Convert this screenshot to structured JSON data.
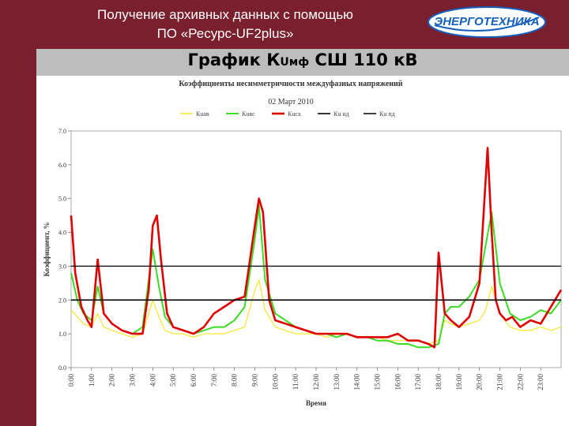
{
  "header": {
    "title_line1": "Получение архивных данных с помощью",
    "title_line2": "ПО «Ресурс-UF2plus»",
    "logo_text": "ЭНЕРГОТЕХНИКА"
  },
  "slide": {
    "title_main": "График К",
    "title_sub": "Uмф",
    "title_rest": "  СШ 110 кВ"
  },
  "colors": {
    "header_bg": "#7a1f2e",
    "band_bg": "#bdbdbd",
    "logo_blue": "#1560bd",
    "k_yellow": "#f5e62a",
    "k_green": "#3ddc24",
    "k_red": "#e00000",
    "limit_line": "#000000"
  },
  "chart_data": {
    "type": "line",
    "title": "Коэффициенты несимметричности междуфазных напряжений",
    "subtitle": "02 Март 2010",
    "xlabel": "Время",
    "ylabel": "Коэффициент, %",
    "ylim": [
      0,
      7
    ],
    "yticks": [
      "0.0",
      "1.0",
      "2.0",
      "3.0",
      "4.0",
      "5.0",
      "6.0",
      "7.0"
    ],
    "xlim": [
      0,
      24
    ],
    "xticks": [
      "0:00",
      "1:00",
      "2:00",
      "3:00",
      "4:00",
      "5:00",
      "6:00",
      "7:00",
      "8:00",
      "9:00",
      "10:00",
      "11:00",
      "12:00",
      "13:00",
      "14:00",
      "15:00",
      "16:00",
      "17:00",
      "18:00",
      "19:00",
      "20:00",
      "21:00",
      "22:00",
      "23:00"
    ],
    "legend": [
      "Кuав",
      "Кuвс",
      "Кuса",
      "Кu нд",
      "Кu пд"
    ],
    "legend_position": "top",
    "grid": false,
    "thresholds": [
      {
        "name": "Кu нд",
        "value": 2.0
      },
      {
        "name": "Кu пд",
        "value": 3.0
      }
    ],
    "series": [
      {
        "name": "Кuав",
        "x": [
          0,
          0.3,
          0.6,
          1,
          1.3,
          1.6,
          2,
          2.5,
          3,
          3.5,
          3.8,
          4,
          4.3,
          4.6,
          5,
          5.5,
          6,
          6.5,
          7,
          7.5,
          8,
          8.5,
          9,
          9.2,
          9.5,
          10,
          10.5,
          11,
          11.5,
          12,
          12.5,
          13,
          13.5,
          14,
          14.5,
          15,
          15.5,
          16,
          16.5,
          17,
          17.5,
          18,
          18.3,
          18.6,
          19,
          19.5,
          20,
          20.3,
          20.6,
          21,
          21.5,
          22,
          22.5,
          23,
          23.5,
          24
        ],
        "y": [
          1.7,
          1.5,
          1.3,
          1.2,
          1.6,
          1.2,
          1.1,
          1.0,
          0.9,
          1.0,
          1.6,
          2.0,
          1.5,
          1.1,
          1.0,
          1.0,
          0.9,
          1.0,
          1.0,
          1.0,
          1.1,
          1.2,
          2.3,
          2.6,
          1.7,
          1.2,
          1.1,
          1.0,
          1.0,
          1.0,
          0.9,
          1.0,
          1.0,
          0.9,
          0.9,
          0.9,
          0.8,
          0.8,
          0.8,
          0.8,
          0.7,
          0.8,
          1.4,
          1.3,
          1.2,
          1.3,
          1.4,
          1.7,
          2.4,
          1.6,
          1.2,
          1.1,
          1.1,
          1.2,
          1.1,
          1.2
        ]
      },
      {
        "name": "Кuвс",
        "x": [
          0,
          0.3,
          0.6,
          1,
          1.3,
          1.6,
          2,
          2.5,
          3,
          3.5,
          3.8,
          4,
          4.3,
          4.6,
          5,
          5.5,
          6,
          6.5,
          7,
          7.5,
          8,
          8.5,
          9,
          9.2,
          9.5,
          10,
          10.5,
          11,
          11.5,
          12,
          12.5,
          13,
          13.5,
          14,
          14.5,
          15,
          15.5,
          16,
          16.5,
          17,
          17.5,
          18,
          18.3,
          18.6,
          19,
          19.5,
          20,
          20.3,
          20.6,
          21,
          21.5,
          22,
          22.5,
          23,
          23.5,
          24
        ],
        "y": [
          2.8,
          2.0,
          1.6,
          1.4,
          2.4,
          1.6,
          1.3,
          1.1,
          1.0,
          1.2,
          2.6,
          3.5,
          2.4,
          1.5,
          1.2,
          1.1,
          1.0,
          1.1,
          1.2,
          1.2,
          1.4,
          1.8,
          3.8,
          4.8,
          2.6,
          1.6,
          1.4,
          1.2,
          1.1,
          1.0,
          1.0,
          0.9,
          1.0,
          0.9,
          0.9,
          0.8,
          0.8,
          0.7,
          0.7,
          0.6,
          0.6,
          0.7,
          1.6,
          1.8,
          1.8,
          2.1,
          2.6,
          3.6,
          4.6,
          2.5,
          1.6,
          1.4,
          1.5,
          1.7,
          1.6,
          2.0
        ]
      },
      {
        "name": "Кuса",
        "x": [
          0,
          0.2,
          0.5,
          0.8,
          1,
          1.3,
          1.6,
          2,
          2.5,
          3,
          3.5,
          3.8,
          4,
          4.2,
          4.4,
          4.7,
          5,
          5.5,
          6,
          6.5,
          7,
          7.5,
          8,
          8.5,
          9,
          9.2,
          9.4,
          9.7,
          10,
          10.5,
          11,
          11.5,
          12,
          12.5,
          13,
          13.5,
          14,
          14.5,
          15,
          15.5,
          16,
          16.5,
          17,
          17.5,
          17.8,
          18,
          18.3,
          18.6,
          19,
          19.5,
          20,
          20.2,
          20.4,
          20.6,
          20.8,
          21,
          21.3,
          21.6,
          22,
          22.5,
          23,
          23.5,
          24
        ],
        "y": [
          4.5,
          2.8,
          1.8,
          1.4,
          1.2,
          3.2,
          1.6,
          1.3,
          1.1,
          1.0,
          1.0,
          2.3,
          4.2,
          4.5,
          3.2,
          1.6,
          1.2,
          1.1,
          1.0,
          1.2,
          1.6,
          1.8,
          2.0,
          2.1,
          4.2,
          5.0,
          4.6,
          2.0,
          1.4,
          1.3,
          1.2,
          1.1,
          1.0,
          1.0,
          1.0,
          1.0,
          0.9,
          0.9,
          0.9,
          0.9,
          1.0,
          0.8,
          0.8,
          0.7,
          0.6,
          3.4,
          1.6,
          1.4,
          1.2,
          1.5,
          2.5,
          4.5,
          6.5,
          4.0,
          2.0,
          1.6,
          1.4,
          1.5,
          1.2,
          1.4,
          1.3,
          1.8,
          2.3
        ]
      },
      {
        "name": "Кu нд",
        "x": [
          0,
          24
        ],
        "y": [
          2.0,
          2.0
        ]
      },
      {
        "name": "Кu пд",
        "x": [
          0,
          24
        ],
        "y": [
          3.0,
          3.0
        ]
      }
    ]
  }
}
